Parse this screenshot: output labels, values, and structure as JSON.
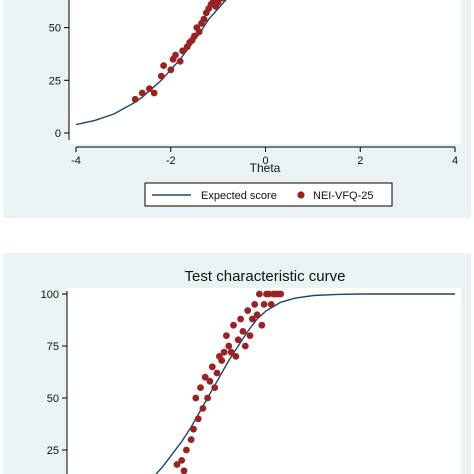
{
  "colors": {
    "panel_bg": "#eaf2f3",
    "plot_bg": "#ffffff",
    "curve": "#1a476f",
    "points": "#9b2222",
    "axis": "#000000"
  },
  "chart_data": [
    {
      "type": "scatter",
      "title": "",
      "xlabel": "Theta",
      "ylabel": "",
      "xlim": [
        -4,
        4
      ],
      "ylim": [
        0,
        65
      ],
      "x_ticks": [
        "-4",
        "-2",
        "0",
        "2",
        "4"
      ],
      "y_ticks": [
        "0",
        "25",
        "50"
      ],
      "legend": {
        "position": "bottom",
        "entries": [
          "Expected score",
          "NEI-VFQ-25"
        ]
      },
      "series": [
        {
          "name": "Expected score",
          "kind": "line",
          "x": [
            -4.0,
            -3.6,
            -3.2,
            -2.8,
            -2.6,
            -2.4,
            -2.2,
            -2.0,
            -1.8,
            -1.6,
            -1.4,
            -1.2,
            -1.0,
            -0.8
          ],
          "y": [
            4,
            6,
            9,
            14,
            17,
            21,
            25,
            30,
            35,
            41,
            47,
            54,
            59,
            64
          ]
        },
        {
          "name": "NEI-VFQ-25",
          "kind": "scatter",
          "x": [
            -2.75,
            -2.6,
            -2.45,
            -2.35,
            -2.2,
            -2.15,
            -2.0,
            -1.95,
            -1.9,
            -1.8,
            -1.75,
            -1.65,
            -1.6,
            -1.55,
            -1.5,
            -1.45,
            -1.4,
            -1.35,
            -1.3,
            -1.25,
            -1.2,
            -1.15,
            -1.1,
            -1.05,
            -1.0,
            -0.9
          ],
          "y": [
            16,
            19,
            21,
            19,
            27,
            32,
            30,
            35,
            37,
            34,
            39,
            41,
            43,
            44,
            46,
            50,
            48,
            52,
            54,
            57,
            59,
            61,
            63,
            60,
            62,
            64
          ]
        }
      ]
    },
    {
      "type": "scatter",
      "title": "Test characteristic curve",
      "xlabel": "",
      "ylabel": "",
      "xlim": [
        -4,
        4
      ],
      "ylim": [
        12,
        100
      ],
      "y_ticks": [
        "25",
        "50",
        "75",
        "100"
      ],
      "series": [
        {
          "name": "Expected score",
          "kind": "line",
          "x": [
            -2.4,
            -2.2,
            -2.0,
            -1.8,
            -1.6,
            -1.4,
            -1.2,
            -1.0,
            -0.8,
            -0.6,
            -0.4,
            -0.2,
            0.0,
            0.3,
            0.6,
            1.0,
            1.5,
            2.0,
            2.5,
            3.0,
            3.5,
            4.0
          ],
          "y": [
            12,
            17,
            23,
            29,
            36,
            44,
            52,
            60,
            68,
            75,
            82,
            88,
            92,
            96,
            98,
            99.3,
            99.8,
            100,
            100,
            100,
            100,
            100
          ]
        },
        {
          "name": "NEI-VFQ-25",
          "kind": "scatter",
          "x": [
            -1.9,
            -1.8,
            -1.75,
            -1.7,
            -1.6,
            -1.55,
            -1.5,
            -1.45,
            -1.4,
            -1.35,
            -1.3,
            -1.25,
            -1.2,
            -1.15,
            -1.1,
            -1.05,
            -1.0,
            -0.95,
            -0.9,
            -0.85,
            -0.8,
            -0.75,
            -0.7,
            -0.65,
            -0.6,
            -0.55,
            -0.5,
            -0.45,
            -0.4,
            -0.35,
            -0.3,
            -0.25,
            -0.2,
            -0.15,
            -0.1,
            -0.05,
            0.0,
            0.05,
            0.1,
            0.15,
            0.2,
            0.25,
            0.3
          ],
          "y": [
            18,
            20,
            15,
            25,
            30,
            35,
            50,
            40,
            55,
            45,
            60,
            50,
            58,
            65,
            55,
            62,
            70,
            68,
            72,
            80,
            75,
            72,
            85,
            70,
            78,
            88,
            82,
            75,
            92,
            80,
            88,
            95,
            90,
            100,
            85,
            95,
            100,
            100,
            95,
            100,
            100,
            100,
            100
          ]
        }
      ]
    }
  ]
}
